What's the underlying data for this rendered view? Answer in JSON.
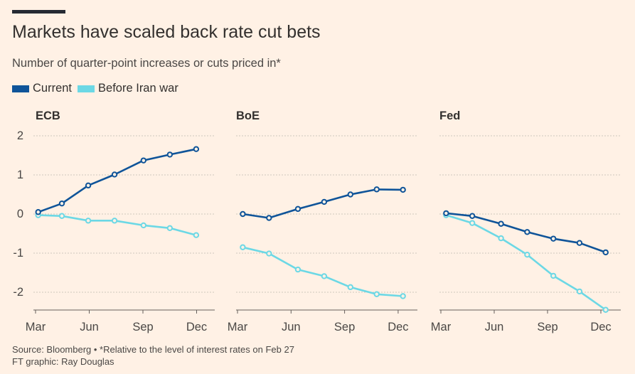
{
  "title": "Markets have scaled back rate cut bets",
  "subtitle": "Number of quarter-point increases or cuts priced in*",
  "legend": {
    "current": "Current",
    "before": "Before Iran war"
  },
  "colors": {
    "current": "#0F5499",
    "before": "#6CD8E5",
    "background": "#FFF1E5"
  },
  "source": {
    "line1": "Source: Bloomberg • *Relative to the level of interest rates on Feb 27",
    "line2": "FT graphic: Ray Douglas"
  },
  "chart_data": {
    "type": "line",
    "y_ticks": [
      2,
      1,
      0,
      -1,
      -2
    ],
    "y_tick_labels": [
      "2",
      "1",
      "0",
      "-1",
      "-2"
    ],
    "ylim": [
      -2.5,
      2.3
    ],
    "x_ticks": [
      "Mar",
      "Jun",
      "Sep",
      "Dec"
    ],
    "panels": [
      {
        "name": "ECB",
        "series": [
          {
            "name": "Current",
            "x": [
              0.1,
              1.0,
              2.0,
              3.0,
              4.1,
              5.1,
              6.1
            ],
            "values": [
              0.05,
              0.27,
              0.73,
              1.01,
              1.37,
              1.52,
              1.66
            ]
          },
          {
            "name": "Before Iran war",
            "x": [
              0.1,
              1.0,
              2.0,
              3.0,
              4.1,
              5.1,
              6.1
            ],
            "values": [
              -0.03,
              -0.05,
              -0.17,
              -0.17,
              -0.29,
              -0.36,
              -0.54
            ]
          }
        ]
      },
      {
        "name": "BoE",
        "series": [
          {
            "name": "Current",
            "x": [
              0.2,
              1.2,
              2.3,
              3.3,
              4.3,
              5.3,
              6.3
            ],
            "values": [
              0.0,
              -0.1,
              0.13,
              0.31,
              0.5,
              0.63,
              0.62
            ]
          },
          {
            "name": "Before Iran war",
            "x": [
              0.2,
              1.2,
              2.3,
              3.3,
              4.3,
              5.3,
              6.3
            ],
            "values": [
              -0.85,
              -1.01,
              -1.42,
              -1.59,
              -1.87,
              -2.05,
              -2.1
            ]
          }
        ]
      },
      {
        "name": "Fed",
        "series": [
          {
            "name": "Current",
            "x": [
              0.2,
              1.2,
              2.3,
              3.3,
              4.3,
              5.3,
              6.3
            ],
            "values": [
              0.02,
              -0.05,
              -0.25,
              -0.46,
              -0.63,
              -0.74,
              -0.98
            ]
          },
          {
            "name": "Before Iran war",
            "x": [
              0.2,
              1.2,
              2.3,
              3.3,
              4.3,
              5.3,
              6.3
            ],
            "values": [
              -0.03,
              -0.23,
              -0.62,
              -1.04,
              -1.58,
              -1.98,
              -2.45
            ]
          }
        ]
      }
    ]
  }
}
